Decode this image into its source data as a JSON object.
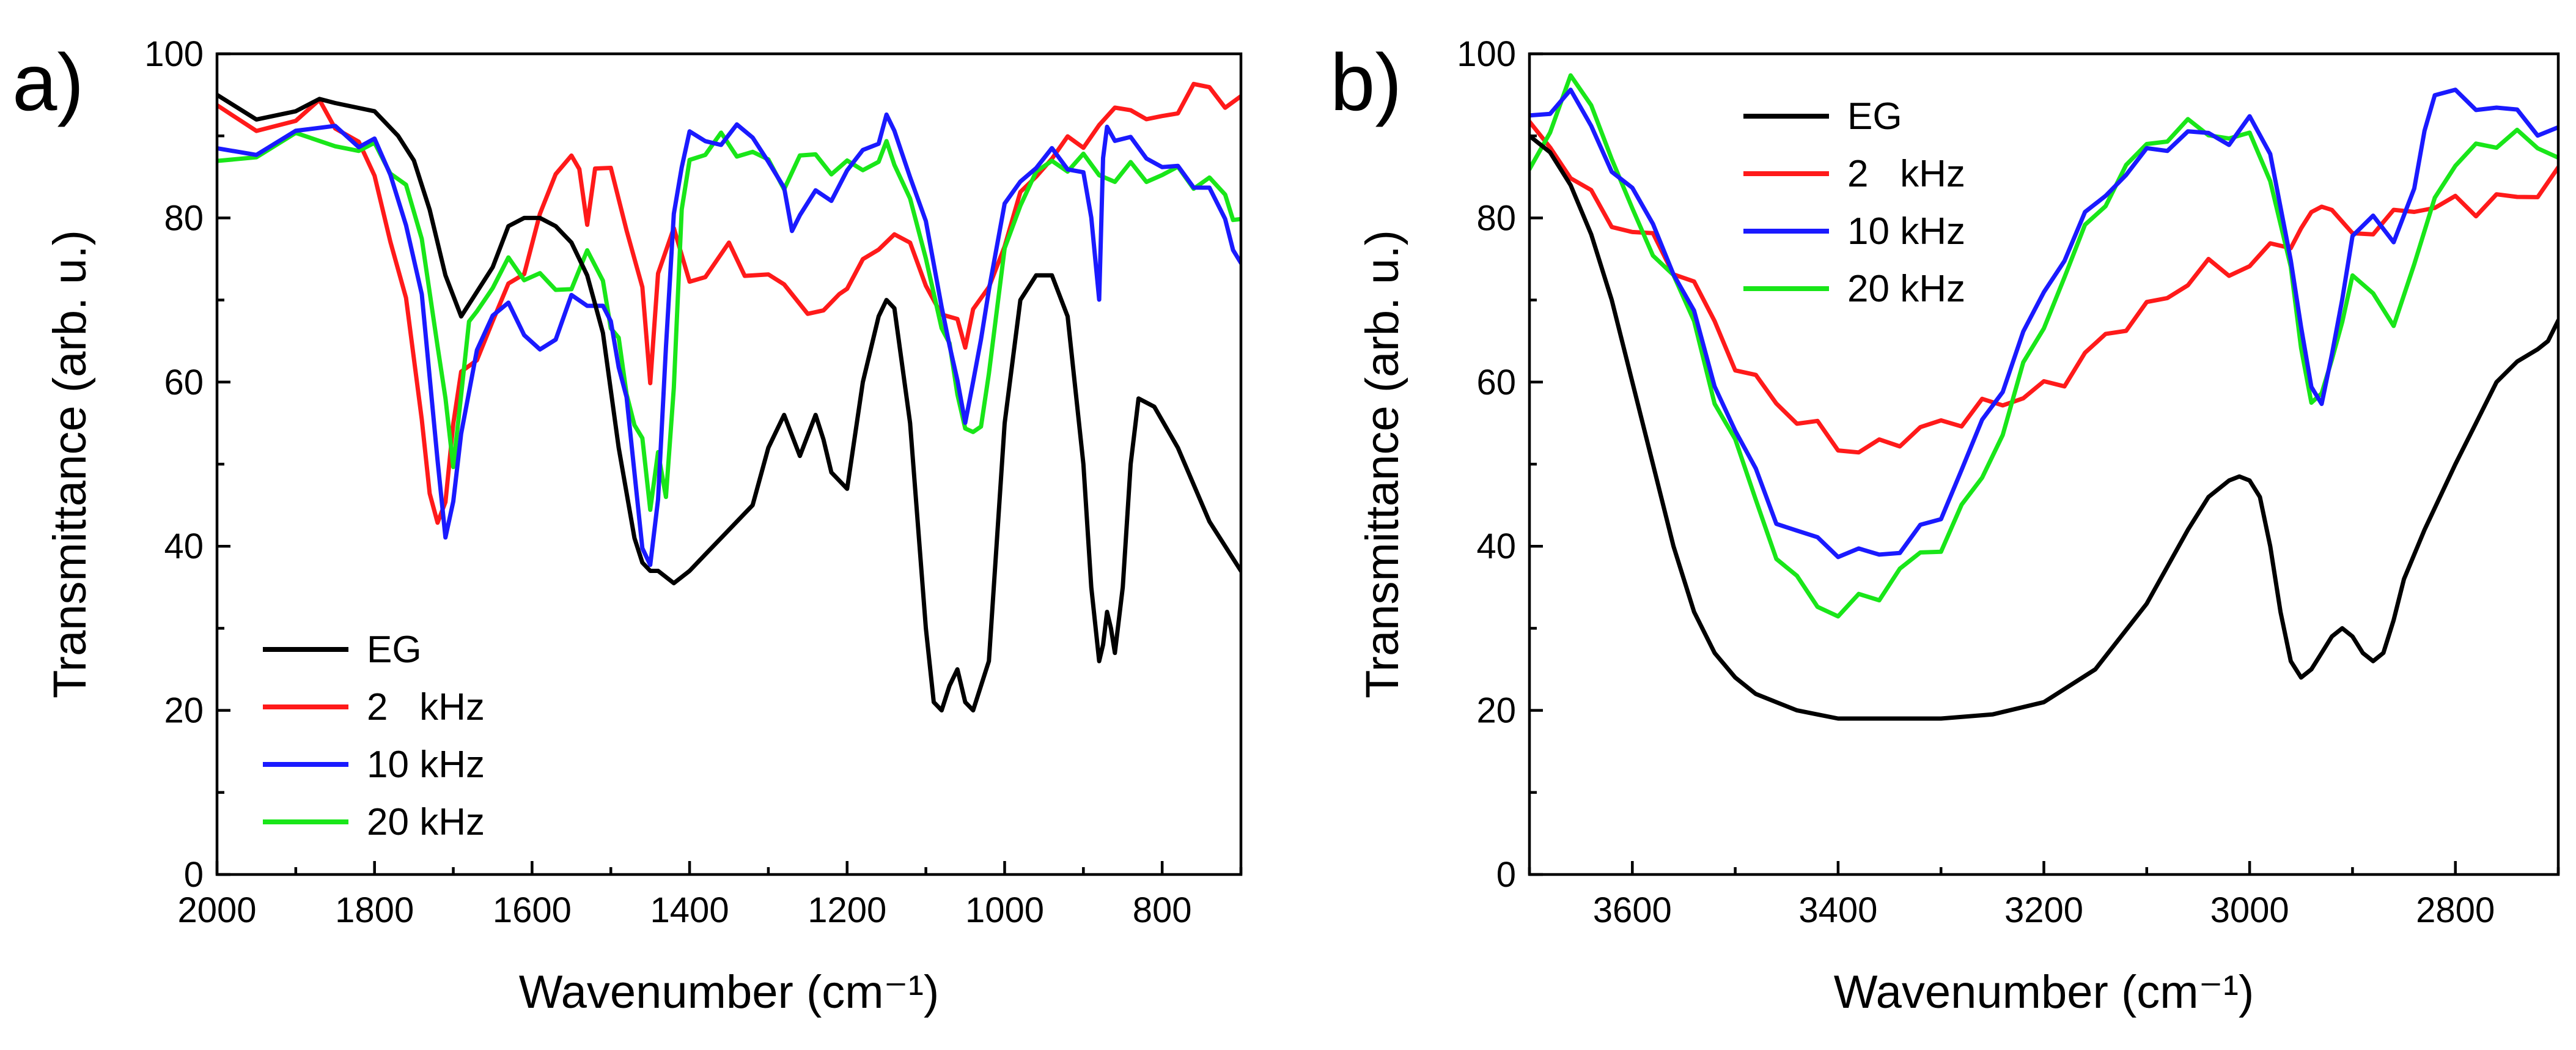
{
  "figure": {
    "panel_a_label": "a)",
    "panel_b_label": "b)"
  },
  "chart_data": [
    {
      "type": "line",
      "panel": "a)",
      "xlabel": "Wavenumber (cm⁻¹)",
      "ylabel": "Transmittance (arb. u.)",
      "xlim": [
        2000,
        700
      ],
      "ylim": [
        0,
        100
      ],
      "x_reversed": true,
      "xticks": [
        2000,
        1800,
        1600,
        1400,
        1200,
        1000,
        800
      ],
      "yticks": [
        0,
        20,
        40,
        60,
        80,
        100
      ],
      "legend_position": "bottom-left",
      "colors": {
        "EG": "#000000",
        "2 kHz": "#ff1a1a",
        "10 kHz": "#1a1aff",
        "20 kHz": "#19e619"
      },
      "series": [
        {
          "name": "EG",
          "label": "EG",
          "color": "#000000",
          "x": [
            2000,
            1950,
            1900,
            1870,
            1850,
            1800,
            1770,
            1750,
            1730,
            1710,
            1690,
            1670,
            1650,
            1630,
            1610,
            1590,
            1570,
            1550,
            1530,
            1510,
            1490,
            1470,
            1460,
            1450,
            1440,
            1420,
            1400,
            1380,
            1360,
            1340,
            1320,
            1300,
            1280,
            1260,
            1240,
            1230,
            1220,
            1200,
            1180,
            1160,
            1150,
            1140,
            1120,
            1100,
            1090,
            1080,
            1070,
            1060,
            1050,
            1040,
            1020,
            1000,
            980,
            960,
            950,
            940,
            920,
            900,
            890,
            880,
            875,
            870,
            865,
            860,
            850,
            840,
            830,
            810,
            780,
            740,
            700
          ],
          "y": [
            95,
            92,
            93,
            94.5,
            94,
            93,
            90,
            87,
            81,
            73,
            68,
            71,
            74,
            79,
            80,
            80,
            79,
            77,
            73,
            66,
            52,
            41,
            38,
            37,
            37,
            35.5,
            37,
            39,
            41,
            43,
            45,
            52,
            56,
            51,
            56,
            53,
            49,
            47,
            60,
            68,
            70,
            69,
            55,
            30,
            21,
            20,
            23,
            25,
            21,
            20,
            26,
            55,
            70,
            73,
            73,
            73,
            68,
            50,
            35,
            26,
            28,
            32,
            30,
            27,
            35,
            50,
            58,
            57,
            52,
            43,
            37
          ]
        },
        {
          "name": "2 kHz",
          "label": "2   kHz",
          "color": "#ff1a1a",
          "x": [
            2000,
            1950,
            1900,
            1870,
            1850,
            1820,
            1800,
            1780,
            1760,
            1740,
            1730,
            1720,
            1710,
            1700,
            1690,
            1670,
            1650,
            1630,
            1610,
            1590,
            1570,
            1550,
            1540,
            1530,
            1520,
            1500,
            1480,
            1460,
            1450,
            1440,
            1420,
            1400,
            1380,
            1350,
            1330,
            1300,
            1280,
            1250,
            1230,
            1210,
            1200,
            1180,
            1160,
            1140,
            1120,
            1100,
            1080,
            1060,
            1050,
            1040,
            1020,
            1000,
            980,
            960,
            940,
            920,
            900,
            880,
            860,
            840,
            820,
            800,
            780,
            760,
            740,
            720,
            700
          ],
          "y": [
            92,
            90,
            92,
            93,
            92,
            90,
            85,
            79,
            70,
            55,
            47,
            41,
            45,
            55,
            60,
            64,
            68,
            72,
            75,
            80,
            85,
            88,
            84,
            79,
            86,
            85,
            80,
            72,
            60,
            75,
            78,
            72,
            73,
            75,
            73,
            73,
            71,
            70,
            69,
            71,
            73,
            74,
            76,
            78,
            75,
            72,
            68,
            67,
            66,
            69,
            72,
            78,
            82,
            85,
            87,
            88,
            89,
            91,
            93,
            95,
            92,
            93,
            94,
            95,
            96,
            93,
            93
          ]
        },
        {
          "name": "10 kHz",
          "label": "10 kHz",
          "color": "#1a1aff",
          "x": [
            2000,
            1950,
            1900,
            1850,
            1820,
            1800,
            1780,
            1760,
            1740,
            1720,
            1710,
            1700,
            1690,
            1670,
            1650,
            1630,
            1610,
            1590,
            1570,
            1550,
            1530,
            1510,
            1500,
            1490,
            1480,
            1470,
            1460,
            1450,
            1440,
            1430,
            1420,
            1410,
            1400,
            1380,
            1360,
            1340,
            1320,
            1300,
            1280,
            1270,
            1260,
            1240,
            1220,
            1200,
            1180,
            1160,
            1150,
            1140,
            1120,
            1100,
            1080,
            1070,
            1060,
            1050,
            1040,
            1030,
            1020,
            1000,
            980,
            960,
            940,
            920,
            900,
            890,
            880,
            875,
            870,
            860,
            840,
            820,
            800,
            780,
            760,
            740,
            720,
            710,
            700
          ],
          "y": [
            88,
            89,
            90,
            90,
            89,
            88,
            85,
            80,
            70,
            52,
            42,
            45,
            55,
            63,
            67,
            70,
            64,
            64,
            66,
            70,
            71,
            70,
            67,
            63,
            57,
            48,
            40,
            36,
            46,
            65,
            80,
            88,
            91,
            89,
            90,
            90,
            89,
            87,
            82,
            79,
            81,
            83,
            84,
            86,
            88,
            90,
            91,
            90,
            85,
            78,
            70,
            65,
            60,
            57,
            60,
            65,
            72,
            80,
            84,
            86,
            87,
            87,
            86,
            80,
            72,
            87,
            91,
            90,
            88,
            87,
            86,
            85,
            85,
            84,
            80,
            78,
            74
          ]
        },
        {
          "name": "20 kHz",
          "label": "20 kHz",
          "color": "#19e619",
          "x": [
            2000,
            1950,
            1900,
            1850,
            1820,
            1800,
            1780,
            1760,
            1740,
            1720,
            1710,
            1700,
            1690,
            1680,
            1670,
            1650,
            1630,
            1610,
            1590,
            1570,
            1550,
            1530,
            1510,
            1500,
            1490,
            1480,
            1470,
            1460,
            1450,
            1440,
            1430,
            1420,
            1410,
            1400,
            1380,
            1360,
            1340,
            1320,
            1300,
            1280,
            1260,
            1240,
            1220,
            1200,
            1180,
            1160,
            1150,
            1140,
            1120,
            1100,
            1080,
            1070,
            1060,
            1050,
            1040,
            1030,
            1020,
            1000,
            980,
            960,
            940,
            920,
            900,
            880,
            860,
            840,
            820,
            800,
            780,
            760,
            740,
            720,
            710,
            700
          ],
          "y": [
            87,
            89,
            90,
            90,
            89,
            88,
            86,
            83,
            76,
            65,
            57,
            50,
            60,
            67,
            70,
            72,
            74,
            73,
            72,
            70,
            72,
            75,
            73,
            68,
            65,
            60,
            55,
            52,
            45,
            50,
            45,
            60,
            80,
            88,
            89,
            90,
            89,
            88,
            86,
            84,
            86,
            87,
            86,
            86,
            87,
            88,
            89,
            88,
            82,
            74,
            67,
            63,
            58,
            55,
            53,
            56,
            62,
            76,
            83,
            85,
            86,
            86,
            86,
            85,
            85,
            86,
            86,
            86,
            86,
            85,
            84,
            82,
            80,
            78
          ]
        }
      ]
    },
    {
      "type": "line",
      "panel": "b)",
      "xlabel": "Wavenumber (cm⁻¹)",
      "ylabel": "Transmittance (arb. u.)",
      "xlim": [
        3700,
        2700
      ],
      "ylim": [
        0,
        100
      ],
      "x_reversed": true,
      "xticks": [
        3600,
        3400,
        3200,
        3000,
        2800
      ],
      "yticks": [
        0,
        20,
        40,
        60,
        80,
        100
      ],
      "legend_position": "top-left",
      "colors": {
        "EG": "#000000",
        "2 kHz": "#ff1a1a",
        "10 kHz": "#1a1aff",
        "20 kHz": "#19e619"
      },
      "series": [
        {
          "name": "EG",
          "label": "EG",
          "color": "#000000",
          "x": [
            3700,
            3680,
            3660,
            3640,
            3620,
            3600,
            3580,
            3560,
            3540,
            3520,
            3500,
            3480,
            3460,
            3440,
            3420,
            3400,
            3350,
            3300,
            3250,
            3200,
            3150,
            3100,
            3060,
            3040,
            3020,
            3010,
            3000,
            2990,
            2980,
            2970,
            2960,
            2950,
            2940,
            2930,
            2920,
            2910,
            2900,
            2890,
            2880,
            2870,
            2860,
            2850,
            2830,
            2800,
            2780,
            2760,
            2740,
            2720,
            2710,
            2700
          ],
          "y": [
            90,
            88,
            84,
            78,
            70,
            60,
            50,
            40,
            32,
            27,
            24,
            22,
            21,
            20,
            19.5,
            19,
            19,
            19,
            19.5,
            21,
            25,
            33,
            42,
            46,
            48,
            48.5,
            48,
            46,
            40,
            32,
            26,
            24,
            25,
            27,
            29,
            30,
            29,
            27,
            26,
            27,
            31,
            36,
            42,
            50,
            55,
            60,
            62.5,
            64,
            65,
            67.5
          ]
        },
        {
          "name": "2 kHz",
          "label": "2   kHz",
          "color": "#ff1a1a",
          "x": [
            3700,
            3680,
            3660,
            3640,
            3620,
            3600,
            3580,
            3560,
            3540,
            3520,
            3500,
            3480,
            3460,
            3440,
            3420,
            3400,
            3380,
            3360,
            3340,
            3320,
            3300,
            3280,
            3260,
            3240,
            3220,
            3200,
            3180,
            3160,
            3140,
            3120,
            3100,
            3080,
            3060,
            3040,
            3020,
            3000,
            2980,
            2960,
            2950,
            2940,
            2930,
            2920,
            2900,
            2880,
            2860,
            2840,
            2820,
            2800,
            2780,
            2760,
            2740,
            2720,
            2700
          ],
          "y": [
            90,
            88,
            85,
            82,
            80,
            79,
            78,
            75,
            72,
            67,
            62,
            59,
            57,
            55,
            54,
            53,
            52,
            53,
            54,
            54,
            55,
            55,
            56,
            57,
            58,
            59,
            61,
            64,
            66,
            68,
            69,
            70,
            72,
            73,
            73,
            74,
            76,
            78,
            79,
            81,
            83,
            80,
            78,
            78,
            79,
            81,
            81,
            82,
            82,
            83,
            83,
            84,
            85
          ]
        },
        {
          "name": "10 kHz",
          "label": "10 kHz",
          "color": "#1a1aff",
          "x": [
            3700,
            3680,
            3660,
            3640,
            3620,
            3600,
            3580,
            3560,
            3540,
            3520,
            3500,
            3480,
            3460,
            3440,
            3420,
            3400,
            3380,
            3360,
            3340,
            3320,
            3300,
            3280,
            3260,
            3240,
            3220,
            3200,
            3180,
            3160,
            3140,
            3120,
            3100,
            3080,
            3060,
            3040,
            3020,
            3000,
            2980,
            2960,
            2950,
            2940,
            2930,
            2920,
            2910,
            2900,
            2880,
            2860,
            2840,
            2830,
            2820,
            2800,
            2780,
            2760,
            2740,
            2720,
            2700
          ],
          "y": [
            92,
            94,
            95,
            90,
            86,
            82,
            79,
            74,
            68,
            61,
            55,
            49,
            44,
            41,
            40,
            39,
            38,
            39,
            40,
            42,
            45,
            50,
            55,
            60,
            65,
            70,
            75,
            79,
            83,
            86,
            88,
            90,
            91,
            90,
            90,
            91,
            87,
            75,
            65,
            60,
            58,
            63,
            72,
            78,
            80,
            78,
            82,
            90,
            95,
            94,
            94,
            94,
            93,
            92,
            91
          ]
        },
        {
          "name": "20 kHz",
          "label": "20 kHz",
          "color": "#19e619",
          "x": [
            3700,
            3680,
            3660,
            3640,
            3620,
            3600,
            3580,
            3560,
            3540,
            3520,
            3500,
            3480,
            3460,
            3440,
            3420,
            3400,
            3380,
            3360,
            3340,
            3320,
            3300,
            3280,
            3260,
            3240,
            3220,
            3200,
            3180,
            3160,
            3140,
            3120,
            3100,
            3080,
            3060,
            3040,
            3020,
            3000,
            2980,
            2960,
            2950,
            2940,
            2930,
            2920,
            2910,
            2900,
            2880,
            2860,
            2840,
            2820,
            2800,
            2780,
            2760,
            2740,
            2720,
            2700
          ],
          "y": [
            86,
            92,
            97,
            95,
            88,
            80,
            76,
            72,
            66,
            58,
            52,
            46,
            40,
            36,
            34,
            32,
            33,
            34,
            36,
            38,
            40,
            44,
            49,
            55,
            62,
            68,
            73,
            78,
            82,
            85,
            88,
            90,
            91,
            91,
            91,
            90,
            86,
            74,
            63,
            58,
            57,
            62,
            68,
            72,
            72,
            68,
            74,
            84,
            86,
            88,
            89,
            89,
            88,
            88
          ]
        }
      ]
    }
  ]
}
